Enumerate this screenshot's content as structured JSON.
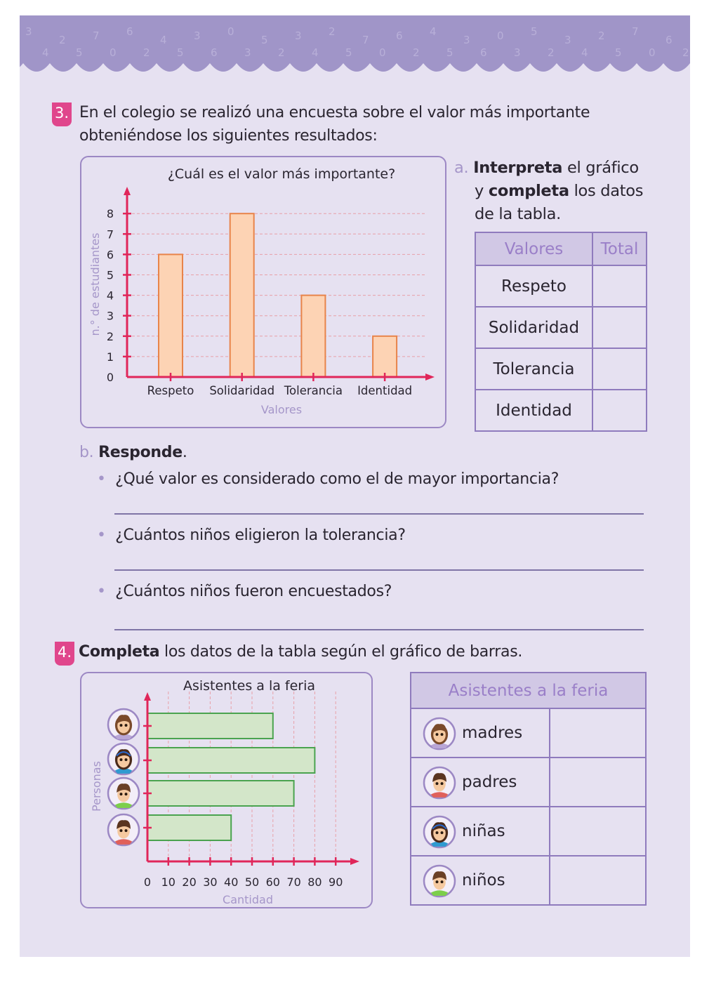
{
  "ex3": {
    "number": "3.",
    "statement_line1": "En el colegio se realizó una encuesta sobre el valor más importante",
    "statement_line2": "obteniéndose los siguientes resultados:",
    "part_a": {
      "letter": "a.",
      "bold1": "Interpreta",
      "text1": " el gráfico",
      "text2_pre": "y ",
      "bold2": "completa",
      "text2": " los datos",
      "text3": "de la tabla."
    },
    "table": {
      "headers": [
        "Valores",
        "Total"
      ],
      "rows": [
        "Respeto",
        "Solidaridad",
        "Tolerancia",
        "Identidad"
      ]
    },
    "part_b": {
      "letter": "b.",
      "title": "Responde",
      "dot": ".",
      "questions": [
        "¿Qué valor es considerado como el de mayor importancia?",
        "¿Cuántos niños eligieron la tolerancia?",
        "¿Cuántos niños fueron encuestados?"
      ]
    }
  },
  "ex4": {
    "number": "4.",
    "bold": "Completa",
    "statement": " los datos de la tabla según el gráfico de barras.",
    "table": {
      "header": "Asistentes a la feria",
      "rows": [
        "madres",
        "padres",
        "niñas",
        "niños"
      ]
    }
  },
  "colors": {
    "accent": "#e0468c",
    "panel": "#e6e1f1",
    "band": "#a095c8",
    "bar1_fill": "#fdd3b4",
    "bar1_stroke": "#e8844a",
    "bar2_fill": "#d3e6c9",
    "bar2_stroke": "#4aa34f",
    "axis": "#e0265a"
  },
  "chart_data": [
    {
      "type": "bar",
      "title": "¿Cuál es el valor más importante?",
      "xlabel": "Valores",
      "ylabel": "n.° de estudiantes",
      "categories": [
        "Respeto",
        "Solidaridad",
        "Tolerancia",
        "Identidad"
      ],
      "values": [
        6,
        8,
        4,
        2
      ],
      "ylim": [
        0,
        8
      ],
      "yticks": [
        "0",
        "1",
        "2",
        "3",
        "4",
        "5",
        "6",
        "7",
        "8"
      ],
      "grid": true
    },
    {
      "type": "bar",
      "orientation": "horizontal",
      "title": "Asistentes a la feria",
      "xlabel": "Cantidad",
      "ylabel": "Personas",
      "categories": [
        "madres",
        "niñas",
        "niños",
        "padres"
      ],
      "values": [
        60,
        80,
        70,
        40
      ],
      "xlim": [
        0,
        90
      ],
      "xticks": [
        "0",
        "10",
        "20",
        "30",
        "40",
        "50",
        "60",
        "70",
        "80",
        "90"
      ],
      "grid": true
    }
  ]
}
